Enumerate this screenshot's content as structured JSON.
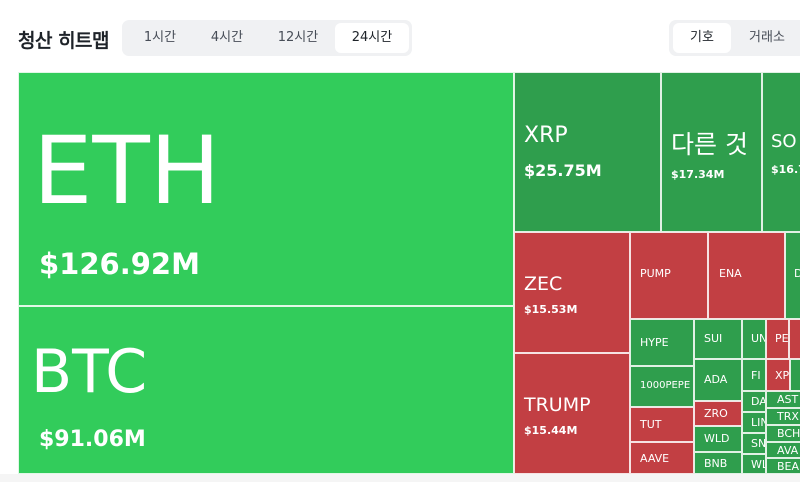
{
  "header": {
    "title": "청산 히트맵",
    "time_tabs": [
      "1시간",
      "4시간",
      "12시간",
      "24시간"
    ],
    "active_time_tab": "24시간",
    "view_tabs": [
      "기호",
      "거래소"
    ],
    "active_view_tab": "기호"
  },
  "colors": {
    "bright_green": "#32cc5b",
    "dark_green": "#2f9e4d",
    "red": "#c23f43"
  },
  "tiles": {
    "eth": {
      "symbol": "ETH",
      "value": "$126.92M"
    },
    "btc": {
      "symbol": "BTC",
      "value": "$91.06M"
    },
    "xrp": {
      "symbol": "XRP",
      "value": "$25.75M"
    },
    "other": {
      "symbol": "다른 것",
      "value": "$17.34M"
    },
    "sol": {
      "symbol": "SO",
      "value": "$16.7"
    },
    "zec": {
      "symbol": "ZEC",
      "value": "$15.53M"
    },
    "trump": {
      "symbol": "TRUMP",
      "value": "$15.44M"
    },
    "pump": {
      "symbol": "PUMP"
    },
    "ena": {
      "symbol": "ENA"
    },
    "d": {
      "symbol": "D"
    },
    "hype": {
      "symbol": "HYPE"
    },
    "pepe": {
      "symbol": "1000PEPE"
    },
    "tut": {
      "symbol": "TUT"
    },
    "aave": {
      "symbol": "AAVE"
    },
    "sui": {
      "symbol": "SUI"
    },
    "ada": {
      "symbol": "ADA"
    },
    "zro": {
      "symbol": "ZRO"
    },
    "wld": {
      "symbol": "WLD"
    },
    "bnb": {
      "symbol": "BNB"
    },
    "un": {
      "symbol": "UN"
    },
    "fi": {
      "symbol": "FI"
    },
    "das": {
      "symbol": "DAS"
    },
    "lin": {
      "symbol": "LIN"
    },
    "sn": {
      "symbol": "SN"
    },
    "wl": {
      "symbol": "WL"
    },
    "pe": {
      "symbol": "PE"
    },
    "xp": {
      "symbol": "XP"
    },
    "ast": {
      "symbol": "AST"
    },
    "trx": {
      "symbol": "TRX"
    },
    "bch": {
      "symbol": "BCH"
    },
    "ava": {
      "symbol": "AVA"
    },
    "bea": {
      "symbol": "BEA"
    }
  }
}
